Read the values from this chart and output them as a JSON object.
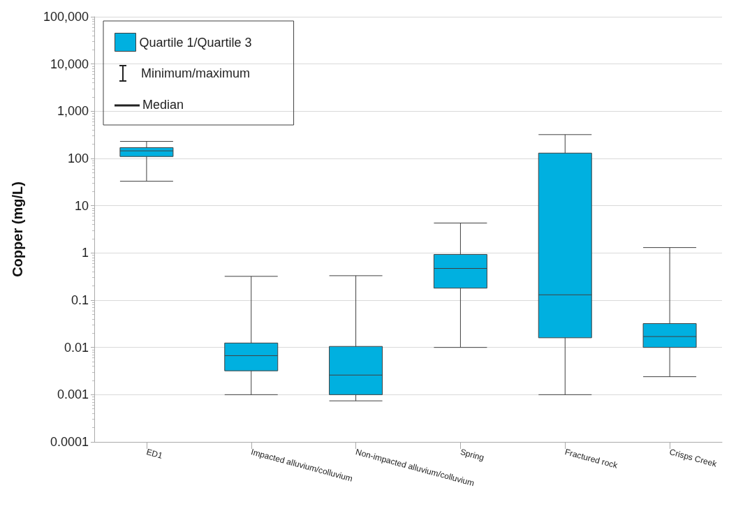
{
  "chart_data": {
    "type": "box",
    "ylabel": "Copper (mg/L)",
    "categories": [
      "ED1",
      "Impacted alluvium/colluvium",
      "Non-impacted alluvium/colluvium",
      "Spring",
      "Fractured rock",
      "Crisps Creek"
    ],
    "series": [
      {
        "name": "Quartile 1/Quartile 3",
        "color": "#00b0e0",
        "boxes": [
          {
            "low": 33,
            "q1": 110,
            "median": 145,
            "q3": 170,
            "high": 230
          },
          {
            "low": 0.001,
            "q1": 0.0032,
            "median": 0.0067,
            "q3": 0.0124,
            "high": 0.32
          },
          {
            "low": 0.00074,
            "q1": 0.001,
            "median": 0.0026,
            "q3": 0.0105,
            "high": 0.33
          },
          {
            "low": 0.01,
            "q1": 0.18,
            "median": 0.47,
            "q3": 0.93,
            "high": 4.3
          },
          {
            "low": 0.001,
            "q1": 0.016,
            "median": 0.13,
            "q3": 130,
            "high": 320
          },
          {
            "low": 0.0024,
            "q1": 0.01,
            "median": 0.017,
            "q3": 0.032,
            "high": 1.3
          }
        ]
      }
    ],
    "annotations": [
      "Minimum/maximum",
      "Median"
    ],
    "log": "y",
    "ylim": [
      0.0001,
      100000
    ],
    "yticks": [
      0.0001,
      0.001,
      0.01,
      0.1,
      1,
      10,
      100,
      {
        "value": 1000,
        "label": "1,000"
      },
      {
        "value": 10000,
        "label": "10,000"
      },
      {
        "value": 100000,
        "label": "100,000"
      }
    ],
    "grid": "y",
    "legend": "top left"
  }
}
